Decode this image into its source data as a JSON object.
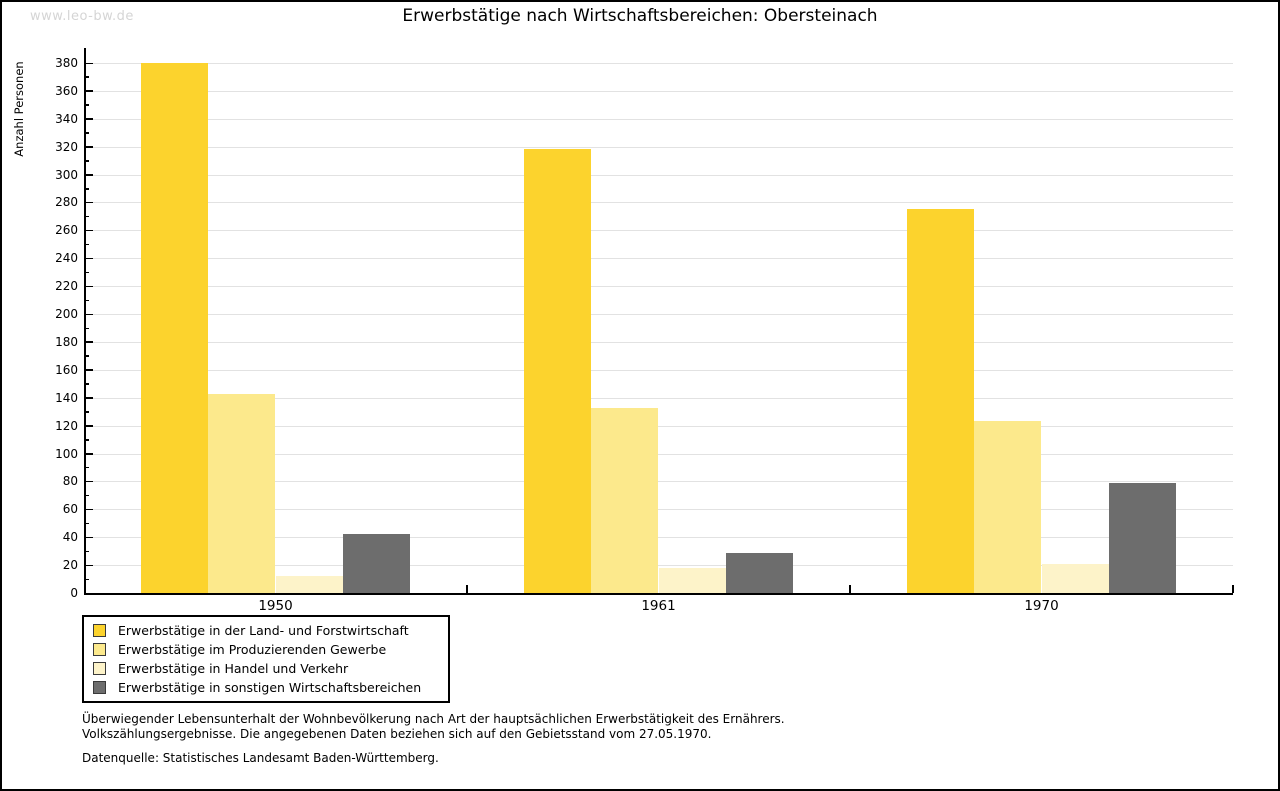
{
  "watermark": "www.leo-bw.de",
  "title": "Erwerbstätige nach Wirtschaftsbereichen: Obersteinach",
  "chart_data": {
    "type": "bar",
    "title": "Erwerbstätige nach Wirtschaftsbereichen: Obersteinach",
    "xlabel": "",
    "ylabel": "Anzahl Personen",
    "categories": [
      "1950",
      "1961",
      "1970"
    ],
    "series": [
      {
        "name": "Erwerbstätige in der Land- und Forstwirtschaft",
        "color": "#fcd32d",
        "values": [
          380,
          318,
          275
        ]
      },
      {
        "name": "Erwerbstätige im Produzierenden Gewerbe",
        "color": "#fce98c",
        "values": [
          143,
          133,
          123
        ]
      },
      {
        "name": "Erwerbstätige in Handel und Verkehr",
        "color": "#fdf3c9",
        "values": [
          12,
          18,
          21
        ]
      },
      {
        "name": "Erwerbstätige in sonstigen Wirtschaftsbereichen",
        "color": "#6d6d6d",
        "values": [
          42,
          29,
          79
        ]
      }
    ],
    "ylim": [
      0,
      380
    ],
    "ytick_major": 20,
    "ytick_minor": 10,
    "grid": true,
    "legend_position": "bottom-left",
    "gridline_color": "#e2e2e2"
  },
  "footnote_lines": [
    "Überwiegender Lebensunterhalt der Wohnbevölkerung nach Art der hauptsächlichen Erwerbstätigkeit des Ernährers.",
    "Volkszählungsergebnisse. Die angegebenen Daten beziehen sich auf den Gebietsstand vom 27.05.1970."
  ],
  "source": "Datenquelle: Statistisches Landesamt Baden-Württemberg."
}
